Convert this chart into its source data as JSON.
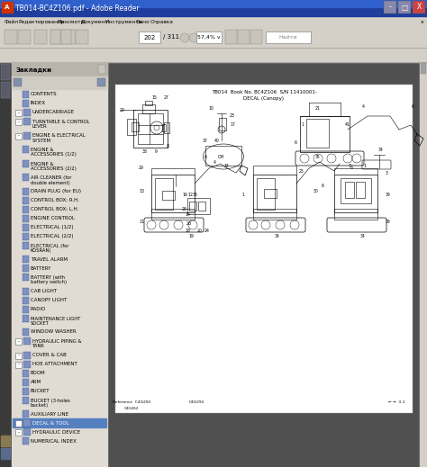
{
  "title_bar": "TB014-BC4Z106.pdf - Adobe Reader",
  "bg_color": "#3c3c3c",
  "title_bar_bg": "#1a3a8a",
  "title_bar_gradient": "#2a5ac0",
  "toolbar_bg": "#d4d0c8",
  "sidebar_outer_bg": "#3a3a3a",
  "sidebar_panel_bg": "#e8e4dc",
  "sidebar_header_bg": "#b8b4ac",
  "sidebar_item_selected_bg": "#4a7abf",
  "sidebar_header": "Закладки",
  "menu_items": [
    "Файл",
    "Редактирование",
    "Просмотр",
    "Документ",
    "Инструменты",
    "Окно",
    "Справка"
  ],
  "sidebar_items": [
    {
      "text": "CONTENTS",
      "level": 1
    },
    {
      "text": "INDEX",
      "level": 1
    },
    {
      "text": "UNDERCARRIAGE",
      "level": 0,
      "collapsed": false
    },
    {
      "text": "TURNTABLE & CONTROL\nLEVER",
      "level": 0,
      "collapsed": false
    },
    {
      "text": "ENGINE & ELECTRICAL\nSYSTEM",
      "level": 0,
      "collapsed": false
    },
    {
      "text": "ENGINE &\nACCESSORIES (1/2)",
      "level": 1
    },
    {
      "text": "ENGINE &\nACCESSORIES (2/2)",
      "level": 1
    },
    {
      "text": "AIR CLEANER (for\ndouble element)",
      "level": 1
    },
    {
      "text": "DRAIN PLUG (for EU)",
      "level": 1
    },
    {
      "text": "CONTROL BOX; R.H.",
      "level": 1
    },
    {
      "text": "CONTROL BOX; L.H.",
      "level": 1
    },
    {
      "text": "ENGINE CONTROL",
      "level": 1
    },
    {
      "text": "ELECTRICAL (1/2)",
      "level": 1
    },
    {
      "text": "ELECTRICAL (2/2)",
      "level": 1
    },
    {
      "text": "ELECTRICAL (for\nKOSRAN)",
      "level": 1
    },
    {
      "text": "TRAVEL ALARM",
      "level": 1
    },
    {
      "text": "BATTERY",
      "level": 1
    },
    {
      "text": "BATTERY (with\nbattery switch)",
      "level": 1
    },
    {
      "text": "CAB LIGHT",
      "level": 1
    },
    {
      "text": "CANOPY LIGHT",
      "level": 1
    },
    {
      "text": "RADIO",
      "level": 1
    },
    {
      "text": "MAINTENANCE LIGHT\nSOCKET",
      "level": 1
    },
    {
      "text": "WINDOW WASHER",
      "level": 1
    },
    {
      "text": "HYDRAULIC PIPING &\nTANK",
      "level": 0,
      "collapsed": false
    },
    {
      "text": "COVER & CAB",
      "level": 0,
      "collapsed": false
    },
    {
      "text": "HOE ATTACHMENT",
      "level": 0,
      "collapsed": false
    },
    {
      "text": "BOOM",
      "level": 1
    },
    {
      "text": "ARM",
      "level": 1
    },
    {
      "text": "BUCKET",
      "level": 1
    },
    {
      "text": "BUCKET (3-holes\nbucket)",
      "level": 1
    },
    {
      "text": "AUXILIARY LINE",
      "level": 1
    },
    {
      "text": "DECAL & TOOL",
      "level": 0,
      "selected": true
    },
    {
      "text": "HYDRAULIC DEVICE",
      "level": 0,
      "collapsed": false
    },
    {
      "text": "NUMERICAL INDEX",
      "level": 1
    }
  ],
  "page_num": "202",
  "page_total": "311",
  "zoom_pct": "57,4%",
  "diagram_header1": "TB014  Book No. BC4Z106  S/N 11410001-",
  "diagram_header2": "DECAL (Canopy)"
}
